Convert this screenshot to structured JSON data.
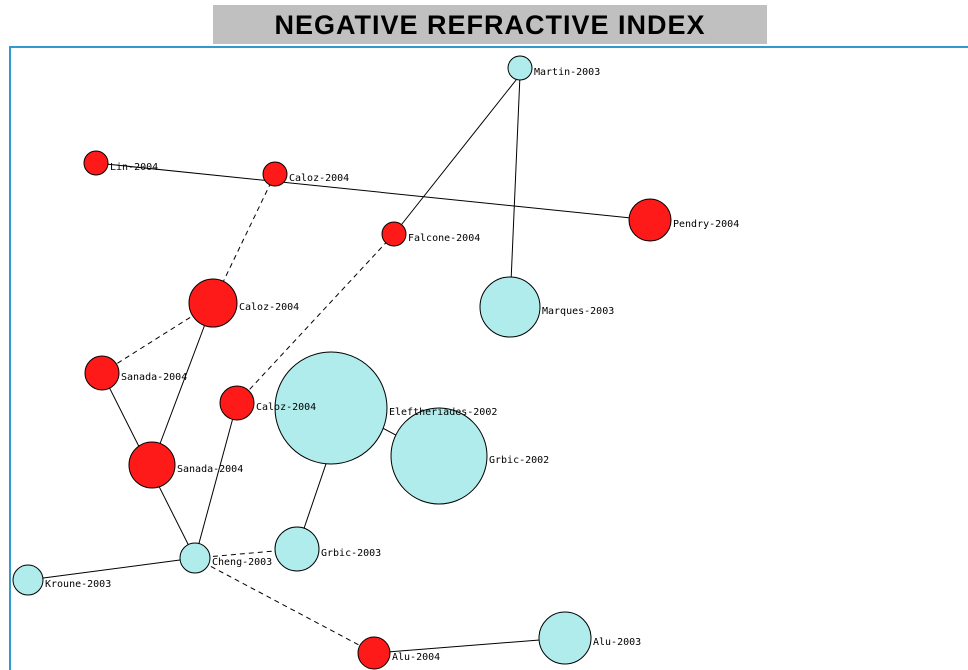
{
  "header": {
    "title": "NEGATIVE REFRACTIVE INDEX"
  },
  "nodes": [
    {
      "label": "Martin-2003"
    },
    {
      "label": "Lin-2004"
    },
    {
      "label": "Caloz-2004"
    },
    {
      "label": "Pendry-2004"
    },
    {
      "label": "Falcone-2004"
    },
    {
      "label": "Marques-2003"
    },
    {
      "label": "Caloz-2004"
    },
    {
      "label": "Sanada-2004"
    },
    {
      "label": "Caloz-2004"
    },
    {
      "label": "Eleftheriades-2002"
    },
    {
      "label": "Grbic-2002"
    },
    {
      "label": "Sanada-2004"
    },
    {
      "label": "Grbic-2003"
    },
    {
      "label": "Cheng-2003"
    },
    {
      "label": "Kroune-2003"
    },
    {
      "label": "Alu-2004"
    },
    {
      "label": "Alu-2003"
    }
  ]
}
